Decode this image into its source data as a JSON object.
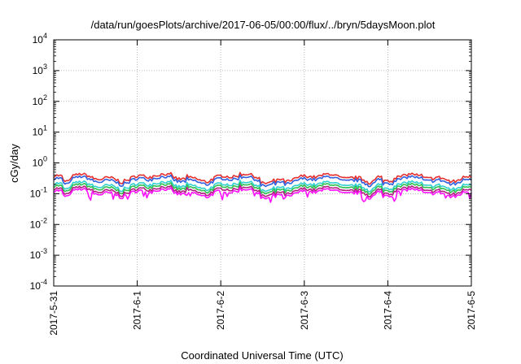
{
  "chart_data": {
    "type": "line",
    "title": "/data/run/goesPlots/archive/2017-06-05/00:00/flux/../bryn/5daysMoon.plot",
    "xlabel": "Coordinated Universal Time (UTC)",
    "ylabel": "cGy/day",
    "yscale": "log",
    "ylim": [
      0.0001,
      10000
    ],
    "y_ticks": [
      {
        "base": "10",
        "exp": "4"
      },
      {
        "base": "10",
        "exp": "3"
      },
      {
        "base": "10",
        "exp": "2"
      },
      {
        "base": "10",
        "exp": "1"
      },
      {
        "base": "10",
        "exp": "0"
      },
      {
        "base": "10",
        "exp": "-1"
      },
      {
        "base": "10",
        "exp": "-2"
      },
      {
        "base": "10",
        "exp": "-3"
      },
      {
        "base": "10",
        "exp": "-4"
      }
    ],
    "x_ticks": [
      "2017-5-31",
      "2017-6-1",
      "2017-6-2",
      "2017-6-3",
      "2017-6-4",
      "2017-6-5"
    ],
    "xlim": [
      0,
      5
    ],
    "grid": true,
    "series": [
      {
        "color": "#e53030",
        "level": 0.34
      },
      {
        "color": "#3060e0",
        "level": 0.28
      },
      {
        "color": "#30d0d0",
        "level": 0.19
      },
      {
        "color": "#30c050",
        "level": 0.16
      },
      {
        "color": "#b02080",
        "level": 0.13
      },
      {
        "color": "#ff10ff",
        "level": 0.11
      }
    ]
  }
}
